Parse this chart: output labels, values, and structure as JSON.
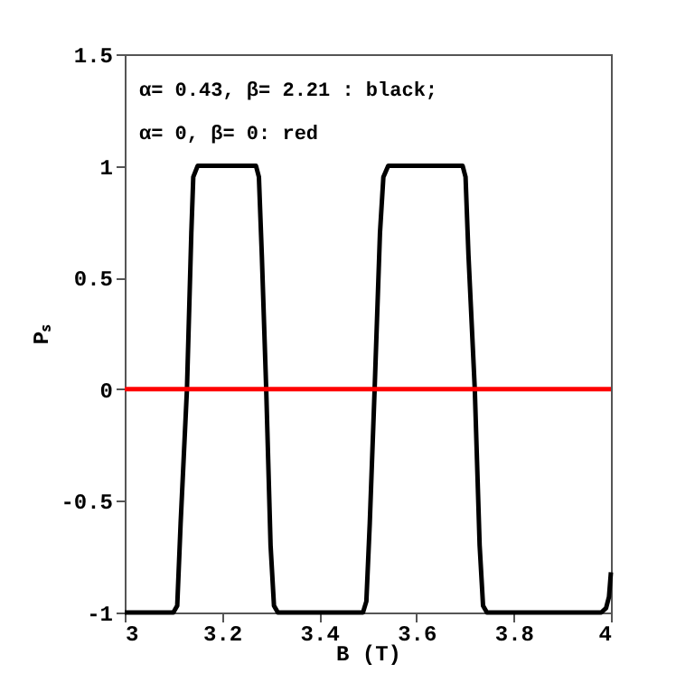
{
  "chart_data": {
    "type": "line",
    "xlabel": "B (T)",
    "ylabel": "Pₛ",
    "annotations": [
      "α= 0.43, β= 2.21 : black;",
      "α= 0, β= 0: red"
    ],
    "xlim": [
      3,
      4
    ],
    "xticks": [
      3,
      3.2,
      3.4,
      3.6,
      3.8,
      4
    ],
    "ylim": [
      -1,
      1.5
    ],
    "yticks": [
      -1,
      -0.5,
      0,
      0.5,
      1,
      1.5
    ],
    "grid": false,
    "marker": "none",
    "line_style": "solid",
    "series": [
      {
        "color": "#000000",
        "x": [
          3,
          3.1,
          3.108,
          3.115,
          3.128,
          3.137,
          3.141,
          3.15,
          3.27,
          3.276,
          3.282,
          3.291,
          3.3,
          3.307,
          3.315,
          3.49,
          3.497,
          3.504,
          3.514,
          3.525,
          3.532,
          3.542,
          3.695,
          3.701,
          3.707,
          3.72,
          3.73,
          3.737,
          3.745,
          3.98,
          3.99,
          3.996,
          4
        ],
        "values": [
          -1,
          -1,
          -0.97,
          -0.6,
          0,
          0.7,
          0.95,
          1,
          1,
          0.95,
          0.6,
          0,
          -0.7,
          -0.97,
          -1,
          -1,
          -0.95,
          -0.6,
          0,
          0.7,
          0.95,
          1,
          1,
          0.95,
          0.6,
          0,
          -0.7,
          -0.97,
          -1,
          -1,
          -0.98,
          -0.93,
          -0.82
        ]
      },
      {
        "color": "#ff0000",
        "x": [
          3,
          4
        ],
        "values": [
          0,
          0
        ]
      }
    ]
  }
}
